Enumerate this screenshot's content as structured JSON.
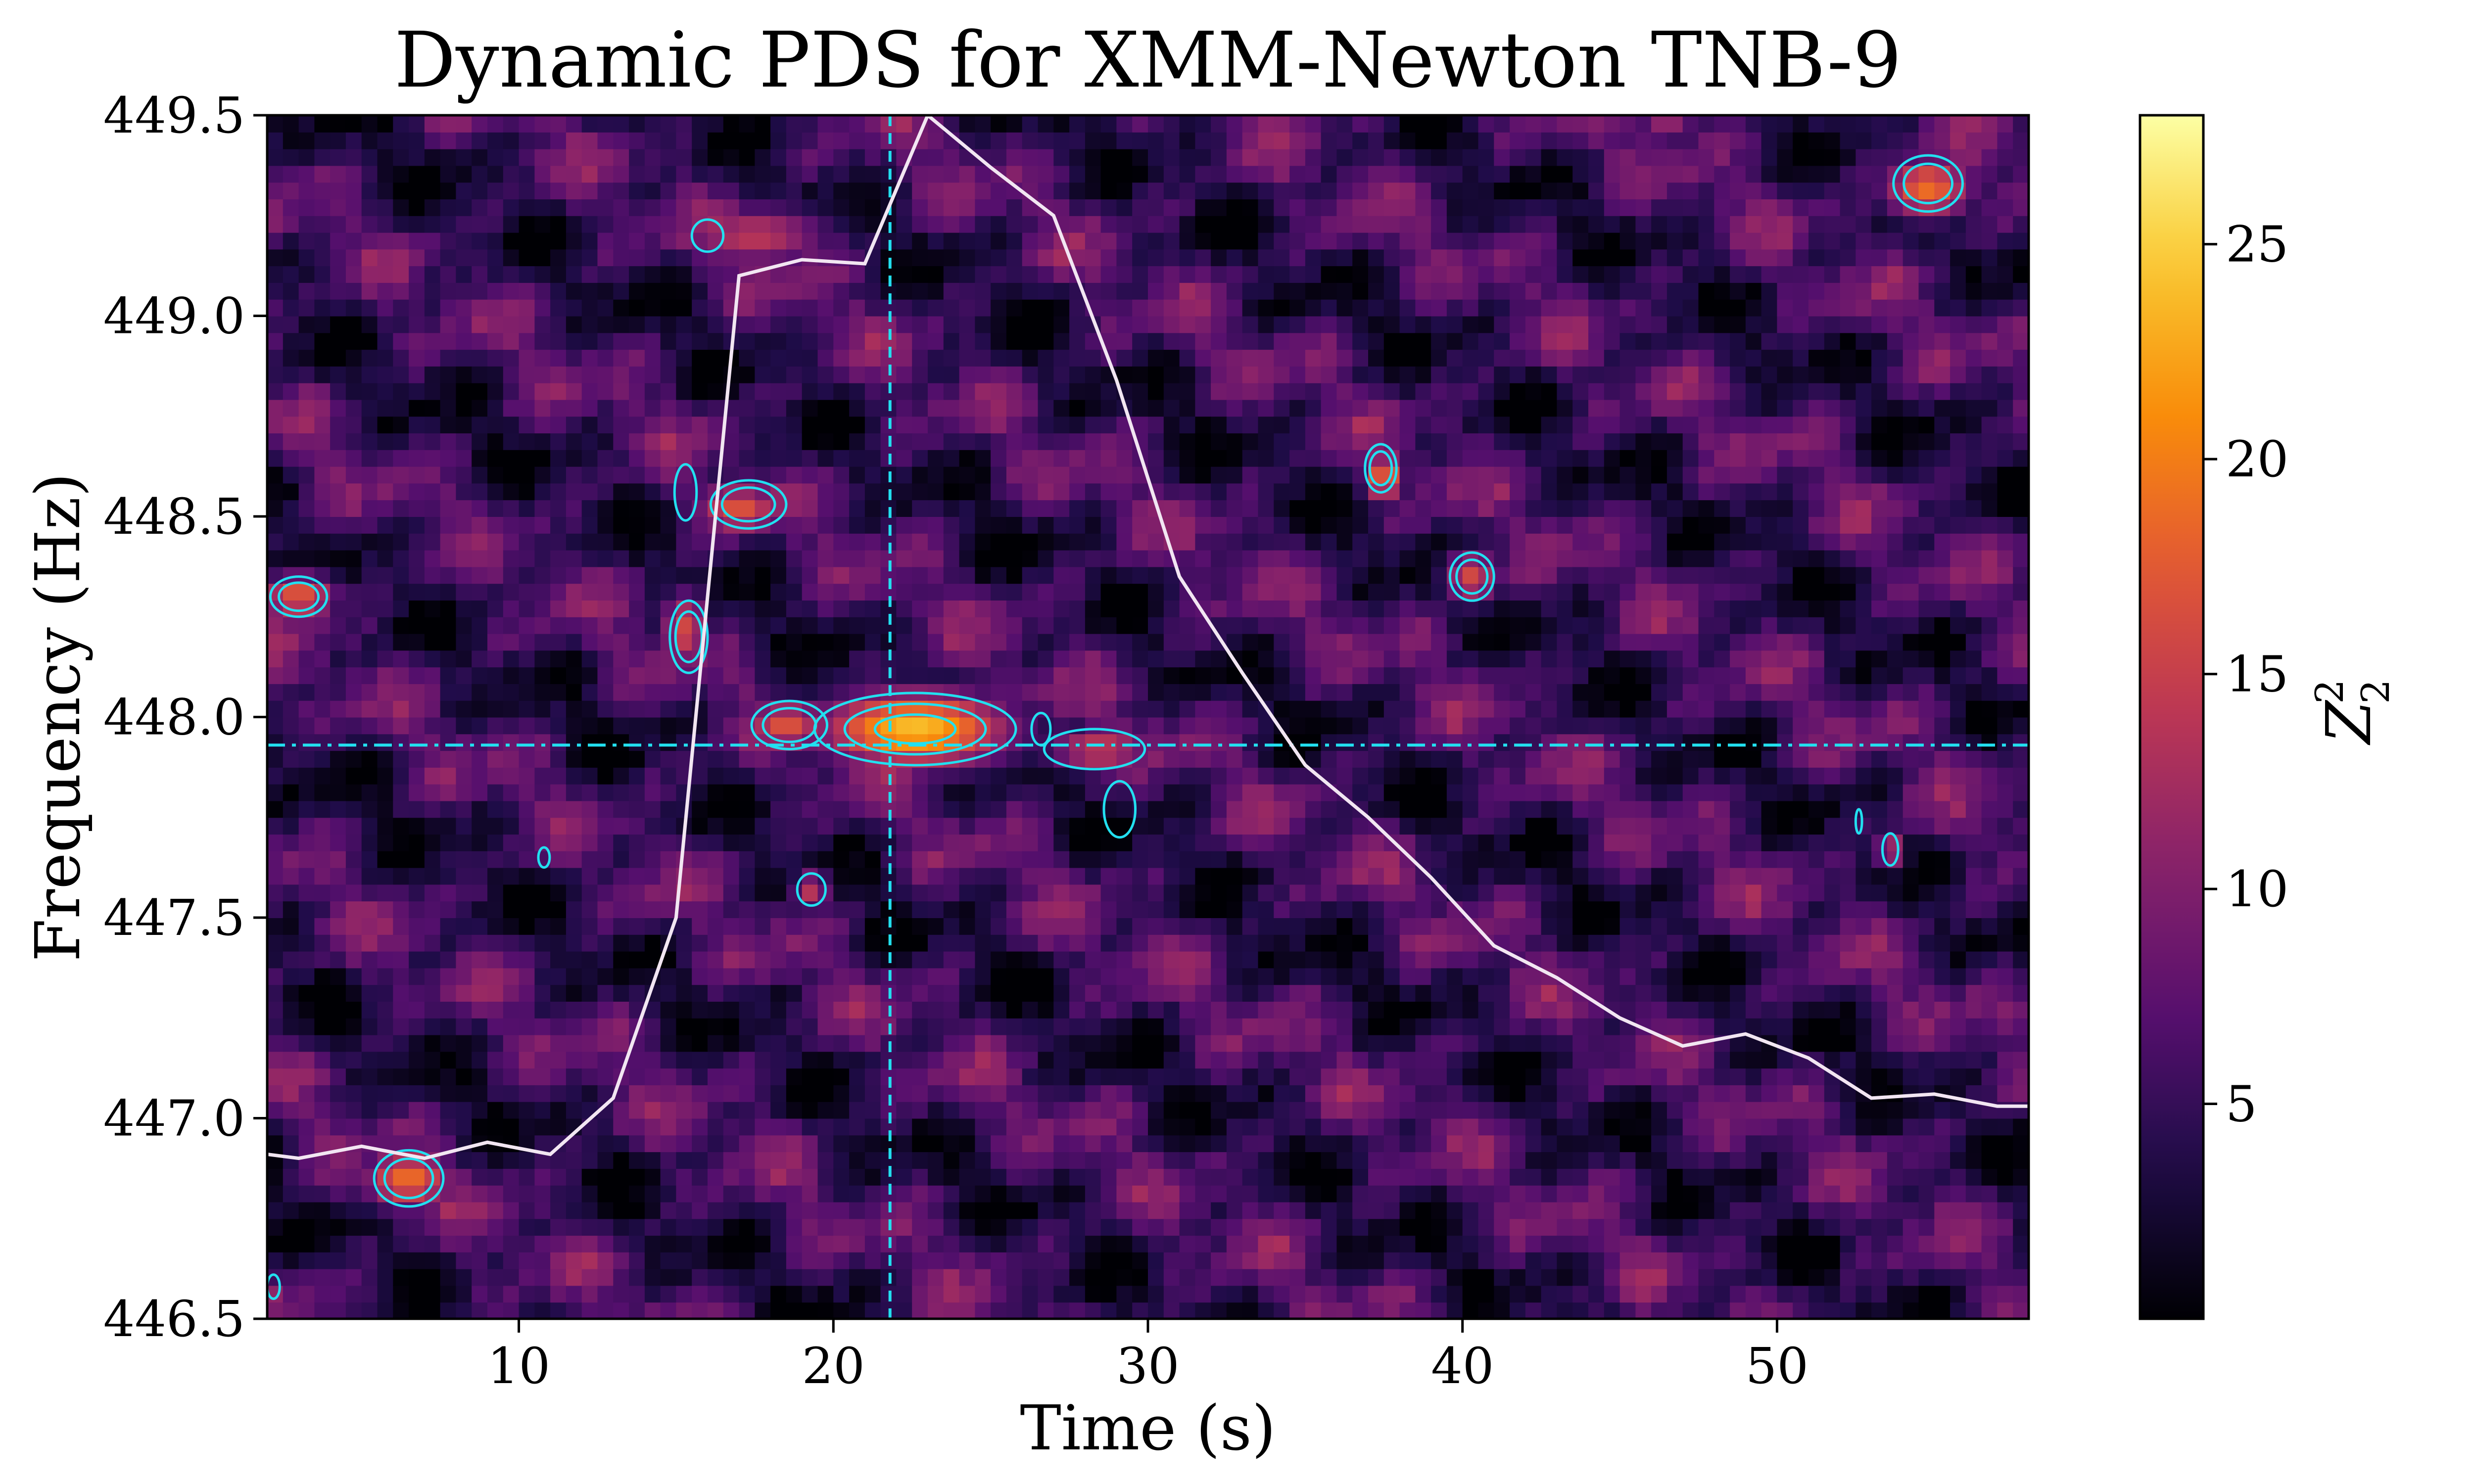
{
  "chart_data": {
    "type": "heatmap",
    "title": "Dynamic PDS for XMM-Newton TNB-9",
    "xlabel": "Time (s)",
    "ylabel": "Frequency (Hz)",
    "colorbar_label": "Z",
    "colorbar_label_sub": "2",
    "colorbar_label_sup": "2",
    "colormap": "inferno",
    "xlim": [
      2,
      58
    ],
    "ylim": [
      446.5,
      449.5
    ],
    "x_ticks": [
      10,
      20,
      30,
      40,
      50
    ],
    "x_tick_labels": [
      "10",
      "20",
      "30",
      "40",
      "50"
    ],
    "y_ticks": [
      446.5,
      447.0,
      447.5,
      448.0,
      448.5,
      449.0,
      449.5
    ],
    "y_tick_labels": [
      "446.5",
      "447.0",
      "447.5",
      "448.0",
      "448.5",
      "449.0",
      "449.5"
    ],
    "colorbar_range": [
      0,
      28
    ],
    "colorbar_ticks": [
      5,
      10,
      15,
      20,
      25
    ],
    "colorbar_tick_labels": [
      "5",
      "10",
      "15",
      "20",
      "25"
    ],
    "reference_lines": {
      "vertical_time": 21.8,
      "horizontal_frequency": 447.93,
      "color": "#22e0f0"
    },
    "light_curve": {
      "color": "#f2e6f2",
      "x": [
        2,
        3,
        5,
        7,
        9,
        11,
        13,
        15,
        17,
        19,
        21,
        23,
        25,
        27,
        29,
        31,
        33,
        35,
        37,
        39,
        41,
        43,
        45,
        47,
        49,
        51,
        53,
        55,
        57,
        58
      ],
      "y": [
        446.91,
        446.9,
        446.93,
        446.9,
        446.94,
        446.91,
        447.05,
        447.5,
        449.1,
        449.14,
        449.13,
        449.5,
        449.37,
        449.25,
        448.84,
        448.35,
        448.11,
        447.88,
        447.75,
        447.6,
        447.43,
        447.35,
        447.25,
        447.18,
        447.21,
        447.15,
        447.05,
        447.06,
        447.03,
        447.03
      ]
    },
    "contours": {
      "color": "#22e0f0",
      "regions": [
        {
          "t": 22.6,
          "f": 447.97,
          "rt": 3.2,
          "rf": 0.09,
          "levels": 3
        },
        {
          "t": 18.6,
          "f": 447.98,
          "rt": 1.2,
          "rf": 0.06,
          "levels": 2
        },
        {
          "t": 28.3,
          "f": 447.92,
          "rt": 1.6,
          "rf": 0.05,
          "levels": 1
        },
        {
          "t": 29.1,
          "f": 447.77,
          "rt": 0.5,
          "rf": 0.07,
          "levels": 1
        },
        {
          "t": 26.6,
          "f": 447.97,
          "rt": 0.3,
          "rf": 0.04,
          "levels": 1
        },
        {
          "t": 17.3,
          "f": 448.53,
          "rt": 1.2,
          "rf": 0.06,
          "levels": 2
        },
        {
          "t": 15.3,
          "f": 448.56,
          "rt": 0.35,
          "rf": 0.07,
          "levels": 1
        },
        {
          "t": 15.4,
          "f": 448.2,
          "rt": 0.6,
          "rf": 0.09,
          "levels": 2
        },
        {
          "t": 19.3,
          "f": 447.57,
          "rt": 0.45,
          "rf": 0.04,
          "levels": 1
        },
        {
          "t": 10.8,
          "f": 447.65,
          "rt": 0.18,
          "rf": 0.025,
          "levels": 1
        },
        {
          "t": 16.0,
          "f": 449.2,
          "rt": 0.5,
          "rf": 0.04,
          "levels": 1
        },
        {
          "t": 3.0,
          "f": 448.3,
          "rt": 0.9,
          "rf": 0.05,
          "levels": 2
        },
        {
          "t": 6.5,
          "f": 446.85,
          "rt": 1.1,
          "rf": 0.07,
          "levels": 2
        },
        {
          "t": 37.4,
          "f": 448.62,
          "rt": 0.5,
          "rf": 0.06,
          "levels": 2
        },
        {
          "t": 40.3,
          "f": 448.35,
          "rt": 0.7,
          "rf": 0.06,
          "levels": 2
        },
        {
          "t": 54.8,
          "f": 449.33,
          "rt": 1.1,
          "rf": 0.07,
          "levels": 2
        },
        {
          "t": 53.6,
          "f": 447.67,
          "rt": 0.25,
          "rf": 0.04,
          "levels": 1
        },
        {
          "t": 52.6,
          "f": 447.74,
          "rt": 0.1,
          "rf": 0.03,
          "levels": 1
        },
        {
          "t": 2.2,
          "f": 446.58,
          "rt": 0.2,
          "rf": 0.03,
          "levels": 1
        }
      ]
    },
    "hot_spots": [
      {
        "t": 22.6,
        "f": 447.97,
        "rt": 3.2,
        "rf": 0.1,
        "z": 24
      },
      {
        "t": 18.5,
        "f": 447.98,
        "rt": 1.4,
        "rf": 0.07,
        "z": 17
      },
      {
        "t": 28.5,
        "f": 447.92,
        "rt": 1.8,
        "rf": 0.06,
        "z": 15
      },
      {
        "t": 17.0,
        "f": 448.52,
        "rt": 1.5,
        "rf": 0.07,
        "z": 17
      },
      {
        "t": 15.3,
        "f": 448.22,
        "rt": 0.8,
        "rf": 0.1,
        "z": 16
      },
      {
        "t": 3.0,
        "f": 448.3,
        "rt": 1.3,
        "rf": 0.06,
        "z": 18
      },
      {
        "t": 6.5,
        "f": 446.85,
        "rt": 1.5,
        "rf": 0.08,
        "z": 19
      },
      {
        "t": 37.5,
        "f": 448.6,
        "rt": 0.7,
        "rf": 0.07,
        "z": 19
      },
      {
        "t": 40.3,
        "f": 448.35,
        "rt": 0.9,
        "rf": 0.07,
        "z": 16
      },
      {
        "t": 54.8,
        "f": 449.32,
        "rt": 1.5,
        "rf": 0.08,
        "z": 19
      },
      {
        "t": 53.6,
        "f": 447.67,
        "rt": 0.5,
        "rf": 0.05,
        "z": 14
      },
      {
        "t": 19.3,
        "f": 447.57,
        "rt": 0.6,
        "rf": 0.05,
        "z": 14
      },
      {
        "t": 17.5,
        "f": 449.2,
        "rt": 2.5,
        "rf": 0.08,
        "z": 14
      },
      {
        "t": 46.5,
        "f": 449.47,
        "rt": 1.0,
        "rf": 0.04,
        "z": 12
      }
    ]
  }
}
